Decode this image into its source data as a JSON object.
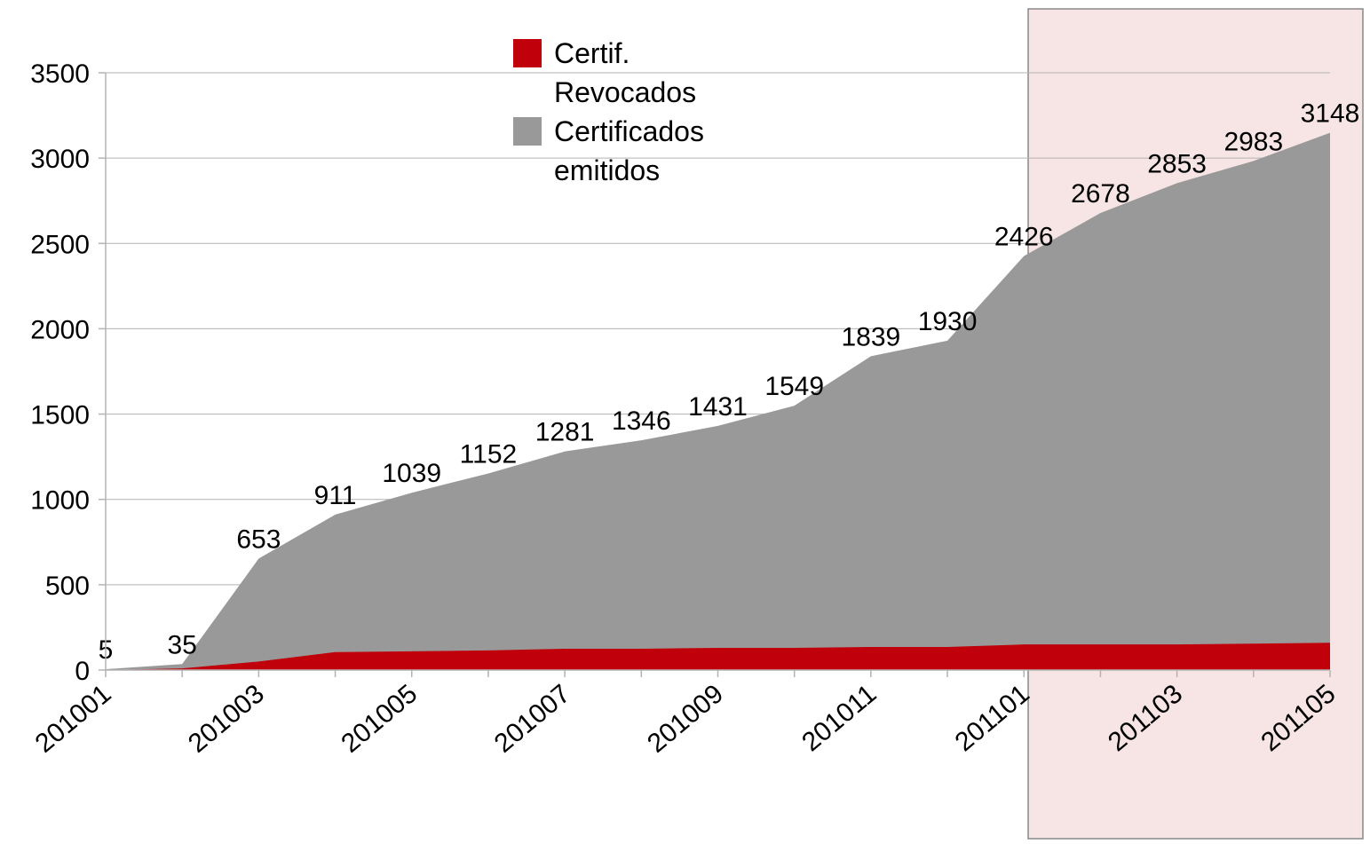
{
  "chart_data": {
    "type": "area",
    "categories": [
      "201001",
      null,
      "201003",
      null,
      "201005",
      null,
      "201007",
      null,
      "201009",
      null,
      "201011",
      null,
      "201101",
      null,
      "201103",
      null,
      "201105"
    ],
    "series": [
      {
        "name": "Certif. Revocados",
        "color": "#c0000a",
        "values": [
          0,
          10,
          50,
          105,
          110,
          115,
          125,
          125,
          130,
          130,
          135,
          135,
          150,
          150,
          150,
          155,
          160
        ]
      },
      {
        "name": "Certificados emitidos",
        "color": "#999999",
        "values": [
          5,
          35,
          653,
          911,
          1039,
          1152,
          1281,
          1346,
          1431,
          1549,
          1839,
          1930,
          2426,
          2678,
          2853,
          2983,
          3148
        ],
        "data_labels": true
      }
    ],
    "ylim": [
      0,
      3500
    ],
    "yticks": [
      0,
      500,
      1000,
      1500,
      2000,
      2500,
      3000,
      3500
    ],
    "grid": true,
    "legend": "top"
  }
}
